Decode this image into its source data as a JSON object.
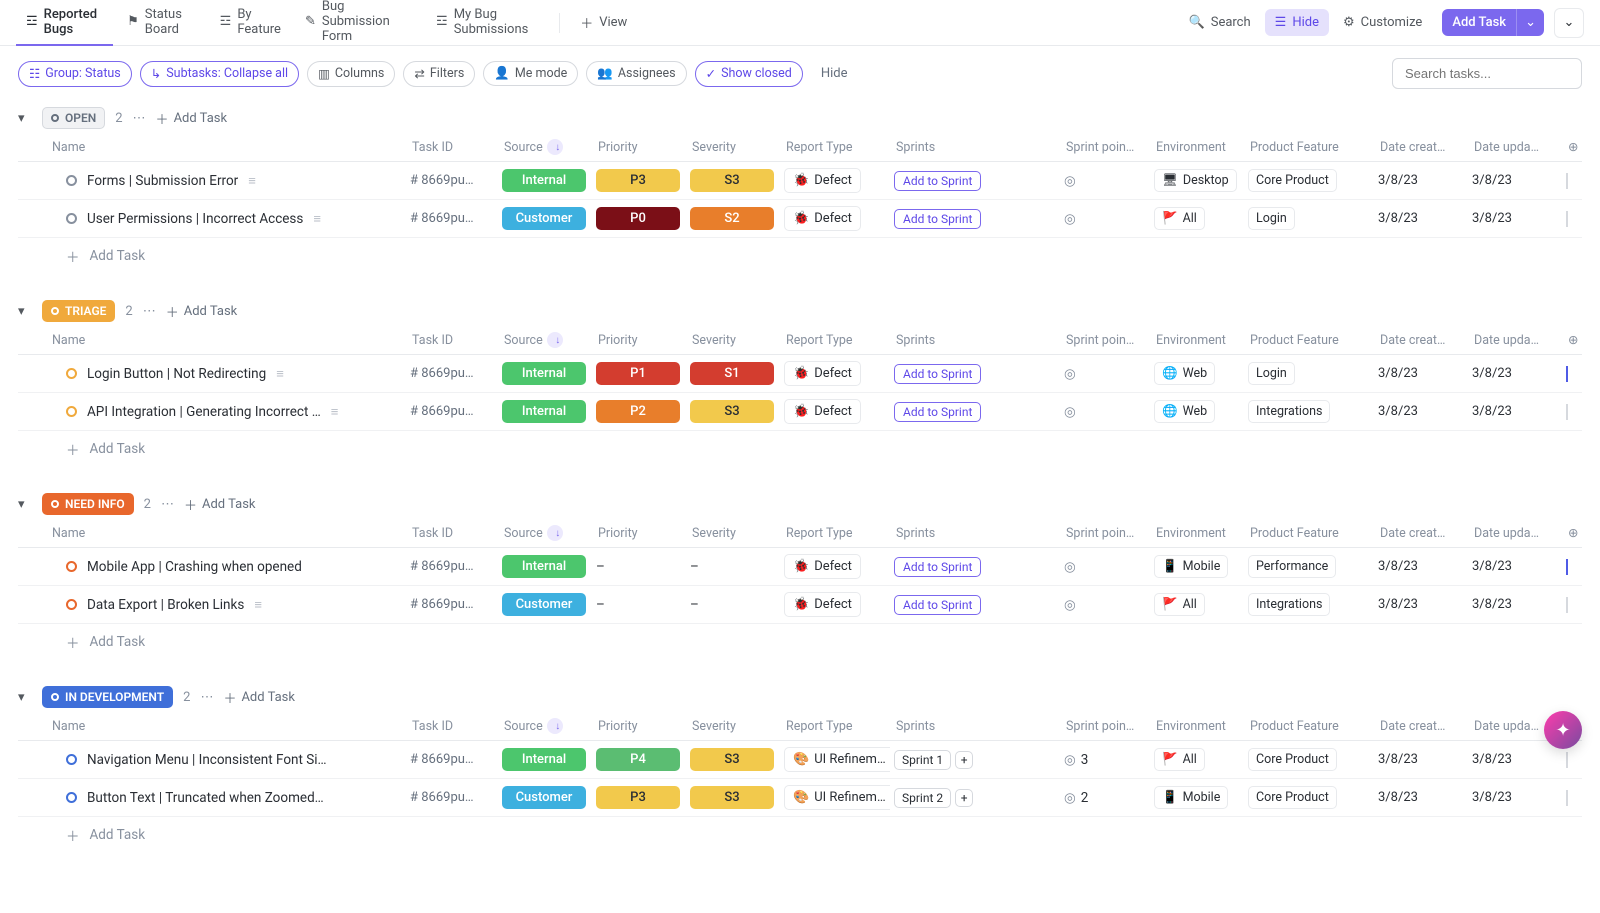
{
  "topbar": {
    "tabs": [
      {
        "label": "Reported Bugs",
        "active": true
      },
      {
        "label": "Status Board"
      },
      {
        "label": "By Feature"
      },
      {
        "label": "Bug Submission Form"
      },
      {
        "label": "My Bug Submissions"
      }
    ],
    "add_view": "View",
    "search": "Search",
    "hide": "Hide",
    "customize": "Customize",
    "add_task": "Add Task"
  },
  "filters": {
    "group": "Group: Status",
    "subtasks": "Subtasks: Collapse all",
    "columns": "Columns",
    "filters": "Filters",
    "me": "Me mode",
    "assignees": "Assignees",
    "show_closed": "Show closed",
    "hide": "Hide",
    "search_placeholder": "Search tasks..."
  },
  "columns": {
    "name": "Name",
    "task_id": "Task ID",
    "source": "Source",
    "priority": "Priority",
    "severity": "Severity",
    "report": "Report Type",
    "sprints": "Sprints",
    "points": "Sprint poin…",
    "env": "Environment",
    "feature": "Product Feature",
    "created": "Date creat…",
    "updated": "Date upda…"
  },
  "labels": {
    "add_task": "Add Task",
    "add_to_sprint": "Add to Sprint",
    "defect": "Defect",
    "ui_refine": "UI Refinem…",
    "dash": "–"
  },
  "source_styles": {
    "Internal": "#4cc66d",
    "Customer": "#3db0df"
  },
  "priority_styles": {
    "P0": "#7b0f17",
    "P1": "#d33d2f",
    "P2": "#e87e2b",
    "P3": "#f2c94c",
    "P4": "#5bbd72"
  },
  "severity_styles": {
    "S1": "#d33d2f",
    "S2": "#e87e2b",
    "S3": "#f2c94c"
  },
  "status_styles": {
    "OPEN": {
      "bg": "#f1f2f4",
      "fg": "#656f7d",
      "ring": "#87909e"
    },
    "TRIAGE": {
      "bg": "#f0a93c",
      "fg": "#ffffff",
      "ring": "#f0a93c"
    },
    "NEED INFO": {
      "bg": "#e8672c",
      "fg": "#ffffff",
      "ring": "#e8672c"
    },
    "IN DEVELOPMENT": {
      "bg": "#3f6fd9",
      "fg": "#ffffff",
      "ring": "#3f6fd9"
    }
  },
  "env_icons": {
    "Desktop": "🖥",
    "Web": "🌐",
    "Mobile": "📱",
    "All": "🚩"
  },
  "groups": [
    {
      "status": "OPEN",
      "count": "2",
      "tasks": [
        {
          "name": "Forms | Submission Error",
          "task_id": "# 8669pu…",
          "source": "Internal",
          "priority": "P3",
          "severity": "S3",
          "report": "defect",
          "sprint": "add",
          "points": "",
          "env": "Desktop",
          "feature": "Core Product",
          "created": "3/8/23",
          "updated": "3/8/23",
          "checked": false,
          "doc": true
        },
        {
          "name": "User Permissions | Incorrect Access",
          "task_id": "# 8669pu…",
          "source": "Customer",
          "priority": "P0",
          "severity": "S2",
          "report": "defect",
          "sprint": "add",
          "points": "",
          "env": "All",
          "feature": "Login",
          "created": "3/8/23",
          "updated": "3/8/23",
          "checked": false,
          "doc": true
        }
      ]
    },
    {
      "status": "TRIAGE",
      "count": "2",
      "tasks": [
        {
          "name": "Login Button | Not Redirecting",
          "task_id": "# 8669pu…",
          "source": "Internal",
          "priority": "P1",
          "severity": "S1",
          "report": "defect",
          "sprint": "add",
          "points": "",
          "env": "Web",
          "feature": "Login",
          "created": "3/8/23",
          "updated": "3/8/23",
          "checked": true,
          "doc": true
        },
        {
          "name": "API Integration | Generating Incorrect …",
          "task_id": "# 8669pu…",
          "source": "Internal",
          "priority": "P2",
          "severity": "S3",
          "report": "defect",
          "sprint": "add",
          "points": "",
          "env": "Web",
          "feature": "Integrations",
          "created": "3/8/23",
          "updated": "3/8/23",
          "checked": false,
          "doc": true
        }
      ]
    },
    {
      "status": "NEED INFO",
      "count": "2",
      "tasks": [
        {
          "name": "Mobile App | Crashing when opened",
          "task_id": "# 8669pu…",
          "source": "Internal",
          "priority": "",
          "severity": "",
          "report": "defect",
          "sprint": "add",
          "points": "",
          "env": "Mobile",
          "feature": "Performance",
          "created": "3/8/23",
          "updated": "3/8/23",
          "checked": true,
          "doc": false
        },
        {
          "name": "Data Export | Broken Links",
          "task_id": "# 8669pu…",
          "source": "Customer",
          "priority": "",
          "severity": "",
          "report": "defect",
          "sprint": "add",
          "points": "",
          "env": "All",
          "feature": "Integrations",
          "created": "3/8/23",
          "updated": "3/8/23",
          "checked": false,
          "doc": true
        }
      ]
    },
    {
      "status": "IN DEVELOPMENT",
      "count": "2",
      "tasks": [
        {
          "name": "Navigation Menu | Inconsistent Font Si…",
          "task_id": "# 8669pu…",
          "source": "Internal",
          "priority": "P4",
          "severity": "S3",
          "report": "ui",
          "sprint": "Sprint 1",
          "points": "3",
          "env": "All",
          "feature": "Core Product",
          "created": "3/8/23",
          "updated": "3/8/23",
          "checked": false,
          "doc": false
        },
        {
          "name": "Button Text | Truncated when Zoomed…",
          "task_id": "# 8669pu…",
          "source": "Customer",
          "priority": "P3",
          "severity": "S3",
          "report": "ui",
          "sprint": "Sprint 2",
          "points": "2",
          "env": "Mobile",
          "feature": "Core Product",
          "created": "3/8/23",
          "updated": "3/8/23",
          "checked": false,
          "doc": false
        }
      ]
    }
  ]
}
